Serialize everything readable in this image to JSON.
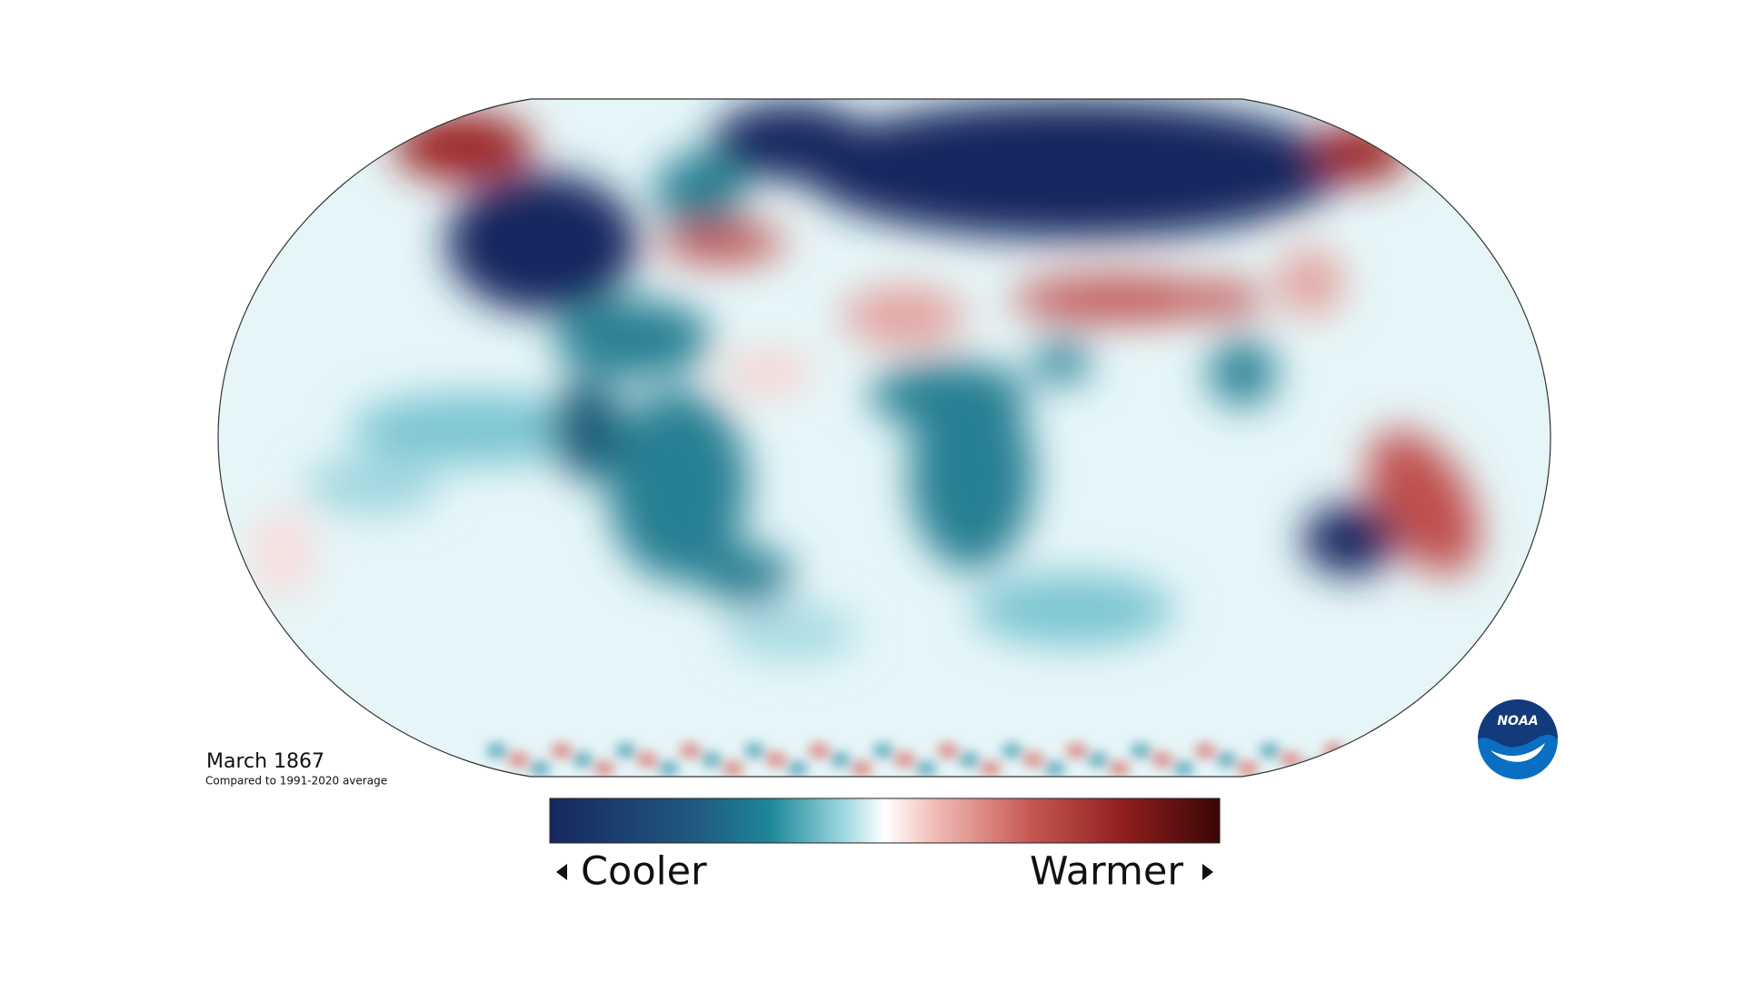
{
  "title": "March 1867",
  "subtitle": "Compared to 1991-2020 average",
  "legend": {
    "low_label": "Cooler",
    "high_label": "Warmer"
  },
  "logo": {
    "text": "NOAA"
  }
}
